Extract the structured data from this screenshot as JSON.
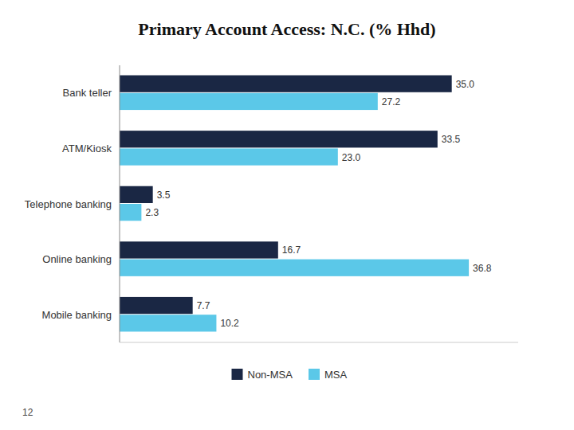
{
  "chart_data": {
    "type": "bar",
    "orientation": "horizontal",
    "title": "Primary Account Access: N.C. (% Hhd)",
    "categories": [
      "Bank teller",
      "ATM/Kiosk",
      "Telephone banking",
      "Online banking",
      "Mobile banking"
    ],
    "series": [
      {
        "name": "Non-MSA",
        "color": "#1a2744",
        "values": [
          35.0,
          33.5,
          3.5,
          16.7,
          7.7
        ],
        "value_labels": [
          "35.0",
          "33.5",
          "3.5",
          "16.7",
          "7.7"
        ]
      },
      {
        "name": "MSA",
        "color": "#5bc8e8",
        "values": [
          27.2,
          23.0,
          2.3,
          36.8,
          10.2
        ],
        "value_labels": [
          "27.2",
          "23.0",
          "2.3",
          "36.8",
          "10.2"
        ]
      }
    ],
    "xlim": [
      0,
      42
    ],
    "grid": false,
    "legend": "bottom",
    "data_labels": true,
    "tick_labels": "y",
    "annotations": [
      "12"
    ]
  }
}
